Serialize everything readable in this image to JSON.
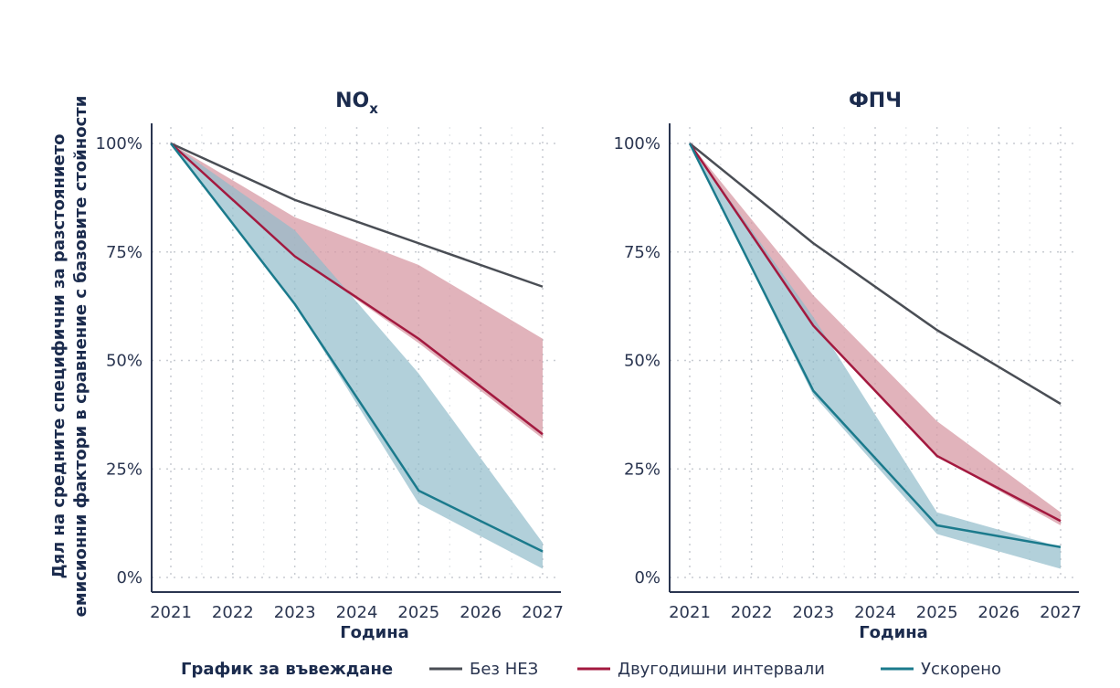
{
  "y_axis_label_line1": "Дял на средните специфични за разстоянието",
  "y_axis_label_line2": "емисионни фактори в сравнение с базовите стойности",
  "x_axis_title": "Година",
  "legend": {
    "title": "График за въвеждане",
    "items": [
      {
        "label": "Без НЕЗ",
        "color": "#4a4e55"
      },
      {
        "label": "Двугодишни интервали",
        "color": "#a3193f"
      },
      {
        "label": "Ускорено",
        "color": "#1b7a8c"
      }
    ]
  },
  "colors": {
    "no_nez": "#4a4e55",
    "biennial": "#a3193f",
    "biennial_band": "#d79aa4",
    "accelerated": "#1b7a8c",
    "accelerated_band": "#92bccb",
    "grid": "#c8ccd2",
    "axis": "#2a3550"
  },
  "chart_data": [
    {
      "type": "line",
      "title_main": "NO",
      "title_sub": "x",
      "xlabel": "Година",
      "x": [
        2021,
        2022,
        2023,
        2024,
        2025,
        2026,
        2027
      ],
      "x_tick_labels": [
        "2021",
        "2022",
        "2023",
        "2024",
        "2025",
        "2026",
        "2027"
      ],
      "ylim": [
        0,
        100
      ],
      "y_ticks": [
        0,
        25,
        50,
        75,
        100
      ],
      "y_tick_labels": [
        "0%",
        "25%",
        "50%",
        "75%",
        "100%"
      ],
      "series": [
        {
          "name": "Без НЕЗ",
          "x": [
            2021,
            2023,
            2025,
            2027
          ],
          "values": [
            100,
            87,
            77,
            67
          ]
        },
        {
          "name": "Двугодишни интервали",
          "x": [
            2021,
            2023,
            2025,
            2027
          ],
          "values": [
            100,
            74,
            55,
            33
          ],
          "band_low": [
            100,
            74,
            54,
            32
          ],
          "band_high": [
            100,
            83,
            72,
            55
          ]
        },
        {
          "name": "Ускорено",
          "x": [
            2021,
            2023,
            2025,
            2027
          ],
          "values": [
            100,
            63,
            20,
            6
          ],
          "band_low": [
            100,
            63,
            17,
            2
          ],
          "band_high": [
            100,
            80,
            47,
            8
          ]
        }
      ]
    },
    {
      "type": "line",
      "title_main": "ФПЧ",
      "title_sub": "",
      "xlabel": "Година",
      "x": [
        2021,
        2022,
        2023,
        2024,
        2025,
        2026,
        2027
      ],
      "x_tick_labels": [
        "2021",
        "2022",
        "2023",
        "2024",
        "2025",
        "2026",
        "2027"
      ],
      "ylim": [
        0,
        100
      ],
      "y_ticks": [
        0,
        25,
        50,
        75,
        100
      ],
      "y_tick_labels": [
        "0%",
        "25%",
        "50%",
        "75%",
        "100%"
      ],
      "series": [
        {
          "name": "Без НЕЗ",
          "x": [
            2021,
            2023,
            2025,
            2027
          ],
          "values": [
            100,
            77,
            57,
            40
          ]
        },
        {
          "name": "Двугодишни интервали",
          "x": [
            2021,
            2023,
            2025,
            2027
          ],
          "values": [
            100,
            58,
            28,
            13
          ],
          "band_low": [
            100,
            58,
            28,
            12
          ],
          "band_high": [
            100,
            65,
            36,
            15
          ]
        },
        {
          "name": "Ускорено",
          "x": [
            2021,
            2023,
            2025,
            2027
          ],
          "values": [
            100,
            43,
            12,
            7
          ],
          "band_low": [
            100,
            42,
            10,
            2
          ],
          "band_high": [
            100,
            60,
            15,
            7
          ]
        }
      ]
    }
  ]
}
